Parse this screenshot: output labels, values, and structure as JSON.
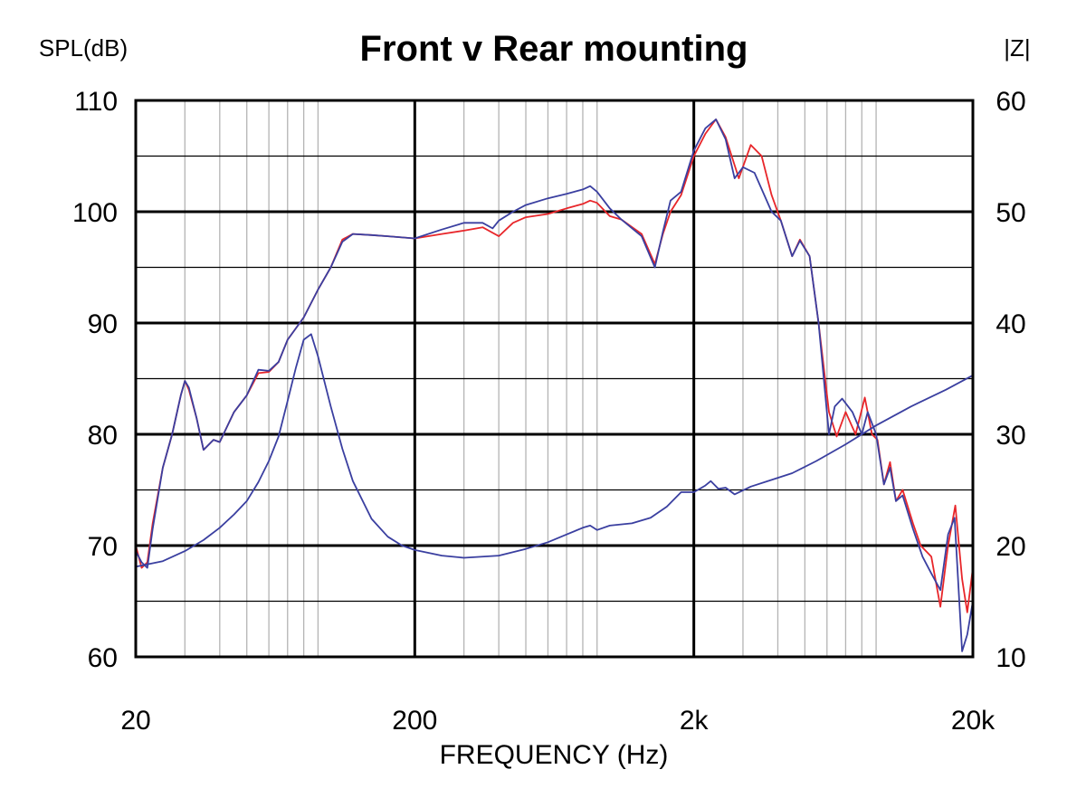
{
  "chart_data": {
    "type": "line",
    "title": "Front v Rear mounting",
    "xlabel": "FREQUENCY (Hz)",
    "ylabel": "SPL(dB)",
    "y2label": "|Z|",
    "xscale": "log",
    "xlim": [
      20,
      20000
    ],
    "ylim": [
      60,
      110
    ],
    "y2lim": [
      10,
      60
    ],
    "x_ticks": [
      {
        "v": 20,
        "label": "20"
      },
      {
        "v": 200,
        "label": "200"
      },
      {
        "v": 2000,
        "label": "2k"
      },
      {
        "v": 20000,
        "label": "20k"
      }
    ],
    "y_ticks": [
      {
        "v": 60,
        "label": "60"
      },
      {
        "v": 70,
        "label": "70"
      },
      {
        "v": 80,
        "label": "80"
      },
      {
        "v": 90,
        "label": "90"
      },
      {
        "v": 100,
        "label": "100"
      },
      {
        "v": 110,
        "label": "110"
      }
    ],
    "y2_ticks": [
      {
        "v": 10,
        "label": "10"
      },
      {
        "v": 20,
        "label": "20"
      },
      {
        "v": 30,
        "label": "30"
      },
      {
        "v": 40,
        "label": "40"
      },
      {
        "v": 50,
        "label": "50"
      },
      {
        "v": 60,
        "label": "60"
      }
    ],
    "grid": true,
    "colors": {
      "series_a": "#e8262a",
      "series_b": "#3a3fa0"
    },
    "series": [
      {
        "color": "#e8262a",
        "axis": "left",
        "points": [
          [
            20,
            70
          ],
          [
            21,
            68
          ],
          [
            22,
            68.5
          ],
          [
            23,
            72
          ],
          [
            25,
            77
          ],
          [
            27,
            80
          ],
          [
            29,
            83.5
          ],
          [
            30,
            84.8
          ],
          [
            31,
            84
          ],
          [
            33,
            81.5
          ],
          [
            35,
            78.6
          ],
          [
            38,
            79.5
          ],
          [
            40,
            79.3
          ],
          [
            45,
            82
          ],
          [
            50,
            83.5
          ],
          [
            55,
            85.5
          ],
          [
            60,
            85.6
          ],
          [
            65,
            86.5
          ],
          [
            70,
            88.5
          ],
          [
            80,
            90.5
          ],
          [
            90,
            93
          ],
          [
            100,
            95
          ],
          [
            110,
            97.5
          ],
          [
            120,
            98
          ],
          [
            140,
            97.9
          ],
          [
            160,
            97.8
          ],
          [
            200,
            97.6
          ],
          [
            250,
            98
          ],
          [
            300,
            98.3
          ],
          [
            350,
            98.6
          ],
          [
            400,
            97.8
          ],
          [
            450,
            99
          ],
          [
            500,
            99.5
          ],
          [
            600,
            99.8
          ],
          [
            700,
            100.3
          ],
          [
            800,
            100.7
          ],
          [
            850,
            101
          ],
          [
            900,
            100.8
          ],
          [
            1000,
            99.6
          ],
          [
            1100,
            99.3
          ],
          [
            1300,
            98
          ],
          [
            1450,
            95.3
          ],
          [
            1550,
            98
          ],
          [
            1650,
            100
          ],
          [
            1800,
            101.5
          ],
          [
            2000,
            105
          ],
          [
            2200,
            107
          ],
          [
            2400,
            108.3
          ],
          [
            2600,
            106.7
          ],
          [
            2900,
            103
          ],
          [
            3200,
            106
          ],
          [
            3500,
            105
          ],
          [
            3800,
            101.5
          ],
          [
            4100,
            99.2
          ],
          [
            4500,
            96
          ],
          [
            4800,
            97.5
          ],
          [
            5200,
            96
          ],
          [
            5600,
            90
          ],
          [
            6100,
            82
          ],
          [
            6500,
            79.8
          ],
          [
            7000,
            82
          ],
          [
            7600,
            80
          ],
          [
            8200,
            83.3
          ],
          [
            8700,
            80
          ],
          [
            9100,
            79.5
          ],
          [
            9600,
            75.5
          ],
          [
            10100,
            77.5
          ],
          [
            10600,
            74
          ],
          [
            11200,
            75
          ],
          [
            12200,
            72
          ],
          [
            13000,
            70
          ],
          [
            14200,
            69
          ],
          [
            15300,
            64.5
          ],
          [
            16300,
            70
          ],
          [
            17300,
            73.6
          ],
          [
            18300,
            67
          ],
          [
            19100,
            64
          ],
          [
            20000,
            68
          ]
        ]
      },
      {
        "color": "#3a3fa0",
        "axis": "left",
        "points": [
          [
            20,
            69.5
          ],
          [
            21,
            68.5
          ],
          [
            22,
            68
          ],
          [
            23,
            71.5
          ],
          [
            25,
            77
          ],
          [
            27,
            80
          ],
          [
            29,
            83.5
          ],
          [
            30,
            84.8
          ],
          [
            31,
            84.2
          ],
          [
            33,
            81.5
          ],
          [
            35,
            78.6
          ],
          [
            38,
            79.5
          ],
          [
            40,
            79.3
          ],
          [
            45,
            82
          ],
          [
            50,
            83.5
          ],
          [
            55,
            85.8
          ],
          [
            60,
            85.7
          ],
          [
            65,
            86.5
          ],
          [
            70,
            88.5
          ],
          [
            80,
            90.5
          ],
          [
            90,
            93
          ],
          [
            100,
            95
          ],
          [
            110,
            97.3
          ],
          [
            120,
            98
          ],
          [
            140,
            97.9
          ],
          [
            160,
            97.8
          ],
          [
            200,
            97.6
          ],
          [
            250,
            98.4
          ],
          [
            300,
            99
          ],
          [
            350,
            99
          ],
          [
            380,
            98.5
          ],
          [
            400,
            99.2
          ],
          [
            450,
            100
          ],
          [
            500,
            100.6
          ],
          [
            600,
            101.2
          ],
          [
            700,
            101.6
          ],
          [
            800,
            102
          ],
          [
            850,
            102.3
          ],
          [
            900,
            101.8
          ],
          [
            1000,
            100.3
          ],
          [
            1100,
            99.3
          ],
          [
            1300,
            97.8
          ],
          [
            1450,
            95
          ],
          [
            1550,
            98.2
          ],
          [
            1650,
            101
          ],
          [
            1800,
            101.8
          ],
          [
            2000,
            105.5
          ],
          [
            2200,
            107.5
          ],
          [
            2400,
            108.3
          ],
          [
            2600,
            106.5
          ],
          [
            2800,
            103
          ],
          [
            3000,
            104
          ],
          [
            3300,
            103.5
          ],
          [
            3800,
            100
          ],
          [
            4100,
            99.2
          ],
          [
            4500,
            96
          ],
          [
            4800,
            97.4
          ],
          [
            5200,
            96
          ],
          [
            5600,
            90
          ],
          [
            6100,
            80
          ],
          [
            6400,
            82.5
          ],
          [
            6800,
            83.2
          ],
          [
            7400,
            82
          ],
          [
            8000,
            80
          ],
          [
            8400,
            82
          ],
          [
            9000,
            80
          ],
          [
            9600,
            75.5
          ],
          [
            10100,
            77
          ],
          [
            10600,
            74
          ],
          [
            11200,
            74.5
          ],
          [
            12200,
            71.5
          ],
          [
            13200,
            69
          ],
          [
            14200,
            67.5
          ],
          [
            15300,
            66
          ],
          [
            16300,
            71
          ],
          [
            17200,
            72.5
          ],
          [
            18300,
            60.5
          ],
          [
            19100,
            62
          ],
          [
            20000,
            65
          ]
        ]
      },
      {
        "color": "#3a3fa0",
        "axis": "right",
        "points": [
          [
            20,
            18.1
          ],
          [
            25,
            18.6
          ],
          [
            30,
            19.5
          ],
          [
            35,
            20.5
          ],
          [
            40,
            21.6
          ],
          [
            45,
            22.8
          ],
          [
            50,
            24
          ],
          [
            55,
            25.7
          ],
          [
            60,
            27.6
          ],
          [
            65,
            29.8
          ],
          [
            70,
            33
          ],
          [
            75,
            36
          ],
          [
            80,
            38.5
          ],
          [
            85,
            39
          ],
          [
            90,
            37
          ],
          [
            100,
            32.5
          ],
          [
            110,
            28.7
          ],
          [
            120,
            25.8
          ],
          [
            140,
            22.4
          ],
          [
            160,
            20.8
          ],
          [
            180,
            20
          ],
          [
            200,
            19.6
          ],
          [
            250,
            19.1
          ],
          [
            300,
            18.9
          ],
          [
            400,
            19.1
          ],
          [
            500,
            19.7
          ],
          [
            600,
            20.3
          ],
          [
            700,
            21
          ],
          [
            800,
            21.6
          ],
          [
            850,
            21.8
          ],
          [
            900,
            21.4
          ],
          [
            1000,
            21.8
          ],
          [
            1200,
            22
          ],
          [
            1400,
            22.5
          ],
          [
            1600,
            23.5
          ],
          [
            1800,
            24.8
          ],
          [
            2000,
            24.8
          ],
          [
            2200,
            25.4
          ],
          [
            2300,
            25.8
          ],
          [
            2450,
            25.1
          ],
          [
            2600,
            25.2
          ],
          [
            2800,
            24.6
          ],
          [
            3200,
            25.3
          ],
          [
            3800,
            25.9
          ],
          [
            4500,
            26.5
          ],
          [
            5500,
            27.6
          ],
          [
            7000,
            29.1
          ],
          [
            9000,
            30.8
          ],
          [
            12000,
            32.5
          ],
          [
            16000,
            34
          ],
          [
            20000,
            35.3
          ]
        ]
      }
    ]
  }
}
